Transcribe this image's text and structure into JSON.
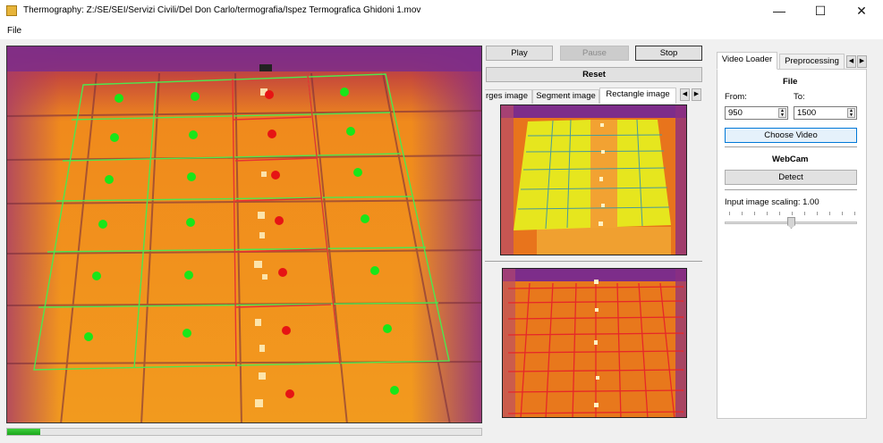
{
  "window": {
    "title": "Thermography: Z:/SE/SEI/Servizi Civili/Del Don Carlo/termografia/Ispez Termografica Ghidoni 1.mov",
    "minimize": "—",
    "maximize": "☐",
    "close": "✕"
  },
  "menu": {
    "file": "File"
  },
  "controls": {
    "play": "Play",
    "pause": "Pause",
    "stop": "Stop",
    "reset": "Reset"
  },
  "image_tabs": [
    "rges image",
    "Segment image",
    "Rectangle image"
  ],
  "right_tabs": [
    "Video Loader",
    "Preprocessing"
  ],
  "video_loader": {
    "file_title": "File",
    "from_label": "From:",
    "to_label": "To:",
    "from_value": "950",
    "to_value": "1500",
    "choose_video": "Choose Video",
    "webcam_title": "WebCam",
    "detect": "Detect",
    "scaling_label": "Input image scaling: 1.00",
    "scaling_value": 1.0
  },
  "progress": {
    "fraction": 0.07
  },
  "colors": {
    "good_marker": "#19e619",
    "bad_marker": "#e61414",
    "grid_good": "#4ee64e",
    "grid_bad": "#e63232",
    "progress": "#2cc02c"
  }
}
